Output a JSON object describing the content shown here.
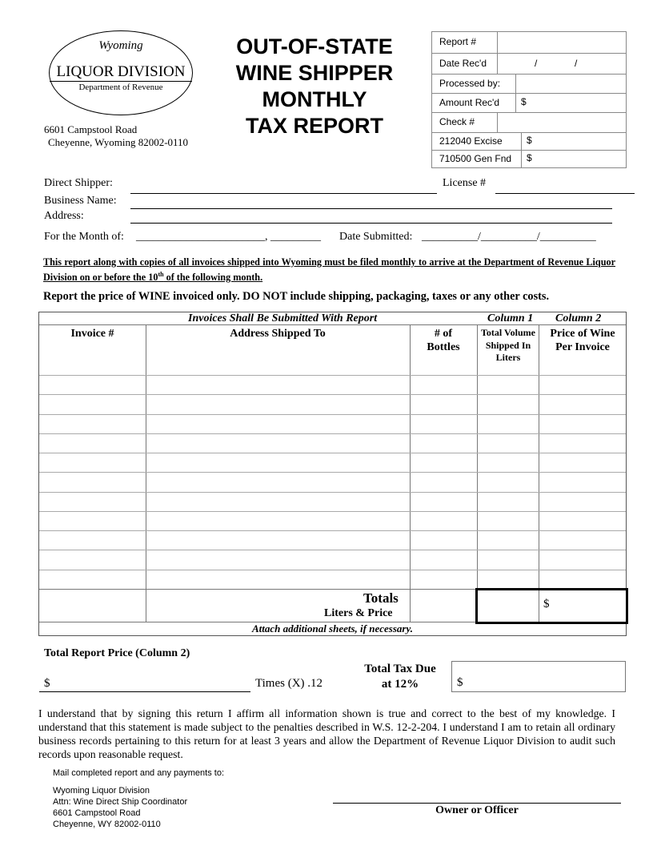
{
  "logo": {
    "script": "Wyoming",
    "name": "LIQUOR DIVISION",
    "dept": "Department of Revenue"
  },
  "address": {
    "line1": "6601 Campstool Road",
    "line2": "Cheyenne, Wyoming 82002-0110"
  },
  "title": [
    "OUT-OF-STATE",
    "WINE SHIPPER",
    "MONTHLY",
    "TAX REPORT"
  ],
  "office_use": {
    "report_no": "Report #",
    "date_recd": "Date Rec'd",
    "date_sep": "/              /",
    "processed_by": "Processed by:",
    "amount_recd": "Amount Rec'd",
    "check_no": "Check #",
    "excise": "212040 Excise",
    "gen_fnd": "710500 Gen Fnd",
    "dollar": "$"
  },
  "fields": {
    "direct_shipper": "Direct Shipper:",
    "license": "License #",
    "business_name": "Business Name:",
    "address": "Address:",
    "month_of": "For the Month of:",
    "month_blank": "_______________________, _________",
    "date_submitted": "Date Submitted:",
    "date_blank": "__________/__________/__________"
  },
  "notice": {
    "text_a": "This report along with copies of all invoices shipped into Wyoming must be filed monthly to arrive at the Department of Revenue Liquor Division on or before the 10",
    "sup": "th",
    "text_b": " of the following month."
  },
  "instruction": "Report the price of WINE invoiced only. DO NOT include shipping, packaging, taxes or any other costs.",
  "table": {
    "banner": "Invoices Shall Be Submitted With Report",
    "column1": "Column 1",
    "column2": "Column 2",
    "headers": [
      "Invoice #",
      "Address Shipped To",
      "# of Bottles",
      "Total Volume Shipped In Liters",
      "Price of Wine Per Invoice"
    ],
    "totals": "Totals",
    "totals_sub": "Liters & Price",
    "dollar": "$",
    "footer": "Attach additional sheets, if necessary."
  },
  "summary": {
    "total_report_price": "Total Report Price (Column 2)",
    "dollar": "$",
    "times": "Times (X) .12",
    "tax_due_1": "Total Tax Due",
    "tax_due_2": "at 12%",
    "tax_dollar": "$"
  },
  "certification": "I understand that by signing this return I affirm all information shown is true and correct to the best of my knowledge.  I understand that this statement is made subject to the penalties described in W.S. 12-2-204.  I understand I am to retain all ordinary business records pertaining to this return for at least 3 years and allow the Department of Revenue Liquor Division to audit such records upon reasonable request.",
  "mail": {
    "heading": "Mail completed report and any payments to:",
    "lines": [
      "Wyoming Liquor Division",
      "Attn: Wine Direct Ship Coordinator",
      "6601 Campstool Road",
      "Cheyenne, WY  82002-0110"
    ]
  },
  "signature": "Owner or Officer"
}
